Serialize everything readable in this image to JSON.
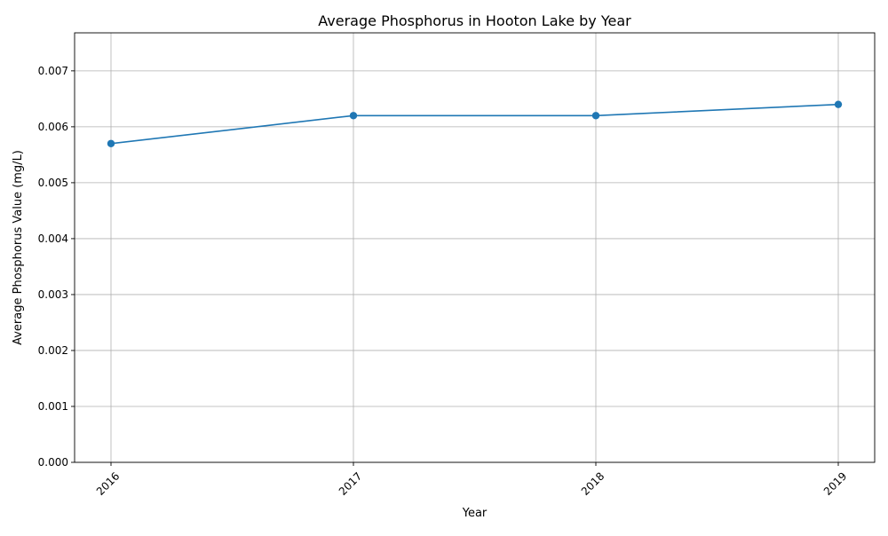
{
  "chart_data": {
    "type": "line",
    "title": "Average Phosphorus in Hooton Lake by Year",
    "xlabel": "Year",
    "ylabel": "Average Phosphorus Value (mg/L)",
    "categories": [
      "2016",
      "2017",
      "2018",
      "2019"
    ],
    "series": [
      {
        "values": [
          0.0057,
          0.0062,
          0.0062,
          0.0064
        ],
        "color": "#1f77b4",
        "marker": "circle"
      }
    ],
    "ylim": [
      0,
      0.00768
    ],
    "yticks": [
      "0.000",
      "0.001",
      "0.002",
      "0.003",
      "0.004",
      "0.005",
      "0.006",
      "0.007"
    ],
    "grid": true,
    "legend": "none"
  }
}
